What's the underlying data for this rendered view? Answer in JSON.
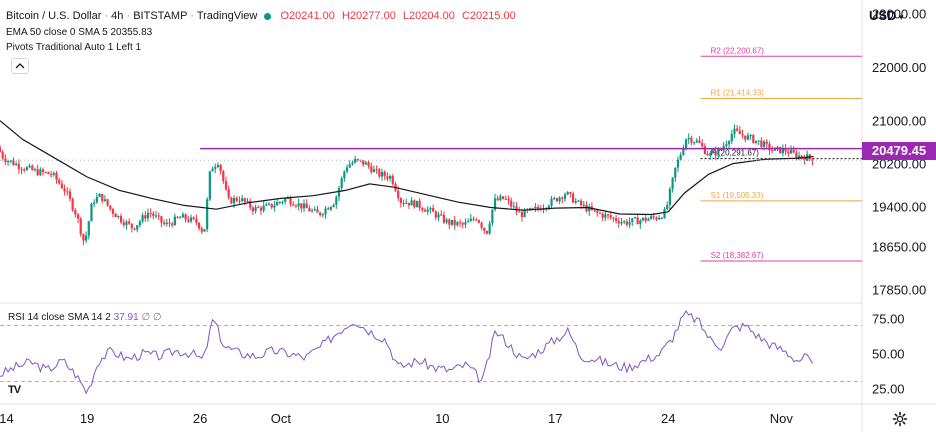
{
  "header": {
    "symbol": "Bitcoin / U.S. Dollar",
    "interval": "4h",
    "exchange": "BITSTAMP",
    "source": "TradingView",
    "open": "O20241.00",
    "high": "H20277.00",
    "low": "L20204.00",
    "close": "C20215.00",
    "ema_label": "EMA 50 close 0 SMA 5",
    "ema_value": "20355.83",
    "pivots_label": "Pivots Traditional Auto 1 Left 1"
  },
  "currency": "USD",
  "colors": {
    "up": "#089981",
    "down": "#f23645",
    "resistance": "#9c27b0",
    "pivot_r": "#f4a742",
    "pivot_s_line": "#e040a0",
    "pivot_r2_line": "#e040a0",
    "ema": "#131722",
    "rsi": "#7e57c2"
  },
  "chart_data": [
    {
      "type": "candlestick",
      "ylim": [
        17600,
        23250
      ],
      "y_ticks": [
        "23000.00",
        "22000.00",
        "21000.00",
        "20200.00",
        "19400.00",
        "18650.00",
        "17850.00"
      ],
      "y_tick_values": [
        23000,
        22000,
        21000,
        20200,
        19400,
        18650,
        17850
      ],
      "x_tick_labels": [
        "14",
        "19",
        "26",
        "Oct",
        "10",
        "17",
        "24",
        "Nov"
      ],
      "x_tick_days": [
        14,
        19,
        26,
        31,
        41,
        48,
        55,
        62
      ],
      "day_range": [
        13.6,
        67.0
      ],
      "price_path": [
        [
          13.6,
          20500
        ],
        [
          14.0,
          20300
        ],
        [
          15.0,
          20150
        ],
        [
          16.0,
          20050
        ],
        [
          17.0,
          20000
        ],
        [
          17.8,
          19700
        ],
        [
          18.5,
          19250
        ],
        [
          19.0,
          18700
        ],
        [
          19.5,
          19500
        ],
        [
          20.0,
          19600
        ],
        [
          20.6,
          19350
        ],
        [
          21.3,
          19150
        ],
        [
          22.0,
          19000
        ],
        [
          23.0,
          19300
        ],
        [
          24.0,
          19050
        ],
        [
          25.0,
          19200
        ],
        [
          26.0,
          19100
        ],
        [
          26.4,
          18900
        ],
        [
          26.8,
          20100
        ],
        [
          27.3,
          20250
        ],
        [
          27.9,
          19500
        ],
        [
          28.6,
          19550
        ],
        [
          29.5,
          19350
        ],
        [
          30.5,
          19400
        ],
        [
          31.5,
          19550
        ],
        [
          32.5,
          19400
        ],
        [
          33.5,
          19250
        ],
        [
          34.5,
          19500
        ],
        [
          35.2,
          20150
        ],
        [
          35.8,
          20250
        ],
        [
          36.4,
          20200
        ],
        [
          37.2,
          20000
        ],
        [
          38.0,
          19950
        ],
        [
          38.6,
          19500
        ],
        [
          39.5,
          19450
        ],
        [
          40.5,
          19300
        ],
        [
          41.5,
          19100
        ],
        [
          42.5,
          19050
        ],
        [
          43.3,
          19200
        ],
        [
          43.9,
          18900
        ],
        [
          44.4,
          19500
        ],
        [
          45.0,
          19550
        ],
        [
          46.0,
          19250
        ],
        [
          47.0,
          19350
        ],
        [
          48.0,
          19500
        ],
        [
          48.8,
          19650
        ],
        [
          49.6,
          19450
        ],
        [
          50.5,
          19300
        ],
        [
          51.5,
          19200
        ],
        [
          52.5,
          19100
        ],
        [
          53.5,
          19150
        ],
        [
          54.5,
          19200
        ],
        [
          55.0,
          19300
        ],
        [
          55.6,
          20100
        ],
        [
          56.3,
          20700
        ],
        [
          57.0,
          20600
        ],
        [
          57.7,
          20350
        ],
        [
          58.4,
          20450
        ],
        [
          59.2,
          20800
        ],
        [
          60.0,
          20700
        ],
        [
          60.8,
          20600
        ],
        [
          61.6,
          20450
        ],
        [
          62.4,
          20450
        ],
        [
          63.1,
          20350
        ],
        [
          64.0,
          20300
        ]
      ],
      "ema50_path": [
        [
          13.6,
          21000
        ],
        [
          15.0,
          20650
        ],
        [
          17.0,
          20300
        ],
        [
          19.0,
          19950
        ],
        [
          21.0,
          19700
        ],
        [
          23.0,
          19550
        ],
        [
          25.0,
          19420
        ],
        [
          27.0,
          19350
        ],
        [
          29.0,
          19470
        ],
        [
          31.0,
          19550
        ],
        [
          33.0,
          19600
        ],
        [
          35.0,
          19700
        ],
        [
          36.5,
          19820
        ],
        [
          38.0,
          19760
        ],
        [
          40.0,
          19620
        ],
        [
          42.0,
          19480
        ],
        [
          44.0,
          19380
        ],
        [
          46.0,
          19330
        ],
        [
          48.0,
          19370
        ],
        [
          50.0,
          19380
        ],
        [
          52.0,
          19260
        ],
        [
          54.0,
          19250
        ],
        [
          55.0,
          19300
        ],
        [
          56.0,
          19650
        ],
        [
          57.5,
          20000
        ],
        [
          59.0,
          20200
        ],
        [
          61.0,
          20280
        ],
        [
          63.0,
          20300
        ],
        [
          64.0,
          20330
        ]
      ],
      "resistance_level": 20479.45,
      "resistance_start_day": 26.0,
      "current_price_label": "20479.45",
      "pivots": [
        {
          "label": "R2 (22,200.67)",
          "value": 22200.67
        },
        {
          "label": "R1 (21,414.33)",
          "value": 21414.33
        },
        {
          "label": "P (20,291.67)",
          "value": 20291.67
        },
        {
          "label": "S1 (19,505.33)",
          "value": 19505.33
        },
        {
          "label": "S2 (18,382.67)",
          "value": 18382.67
        }
      ],
      "pivot_start_day": 57.0
    },
    {
      "type": "line",
      "name": "RSI",
      "legend": "RSI 14 close SMA 14 2",
      "last_value": "37.91",
      "extras": "∅ ∅",
      "ylim": [
        14,
        86
      ],
      "y_ticks": [
        "75.00",
        "50.00",
        "25.00"
      ],
      "y_tick_values": [
        75,
        50,
        25
      ],
      "bands": [
        70,
        30
      ],
      "path": [
        [
          13.6,
          35
        ],
        [
          14.5,
          40
        ],
        [
          15.5,
          44
        ],
        [
          16.5,
          38
        ],
        [
          17.5,
          45
        ],
        [
          18.3,
          35
        ],
        [
          19.0,
          22
        ],
        [
          19.7,
          45
        ],
        [
          20.5,
          52
        ],
        [
          21.5,
          46
        ],
        [
          22.5,
          50
        ],
        [
          23.5,
          48
        ],
        [
          24.5,
          52
        ],
        [
          25.5,
          50
        ],
        [
          26.2,
          45
        ],
        [
          26.8,
          75
        ],
        [
          27.5,
          55
        ],
        [
          28.5,
          50
        ],
        [
          29.5,
          48
        ],
        [
          30.5,
          52
        ],
        [
          31.5,
          50
        ],
        [
          32.5,
          47
        ],
        [
          33.5,
          55
        ],
        [
          34.5,
          65
        ],
        [
          35.5,
          74
        ],
        [
          36.5,
          66
        ],
        [
          37.5,
          60
        ],
        [
          38.3,
          40
        ],
        [
          39.5,
          45
        ],
        [
          40.5,
          40
        ],
        [
          41.5,
          38
        ],
        [
          42.5,
          42
        ],
        [
          43.5,
          30
        ],
        [
          44.3,
          66
        ],
        [
          45.0,
          58
        ],
        [
          46.0,
          45
        ],
        [
          47.0,
          52
        ],
        [
          48.0,
          60
        ],
        [
          48.8,
          66
        ],
        [
          49.6,
          48
        ],
        [
          50.5,
          46
        ],
        [
          51.5,
          42
        ],
        [
          52.5,
          40
        ],
        [
          53.5,
          45
        ],
        [
          54.5,
          50
        ],
        [
          55.2,
          60
        ],
        [
          56.0,
          78
        ],
        [
          56.8,
          74
        ],
        [
          57.6,
          60
        ],
        [
          58.3,
          55
        ],
        [
          59.0,
          68
        ],
        [
          59.8,
          70
        ],
        [
          60.6,
          62
        ],
        [
          61.4,
          56
        ],
        [
          62.2,
          52
        ],
        [
          63.0,
          45
        ],
        [
          63.6,
          48
        ],
        [
          64.0,
          38
        ]
      ]
    }
  ]
}
